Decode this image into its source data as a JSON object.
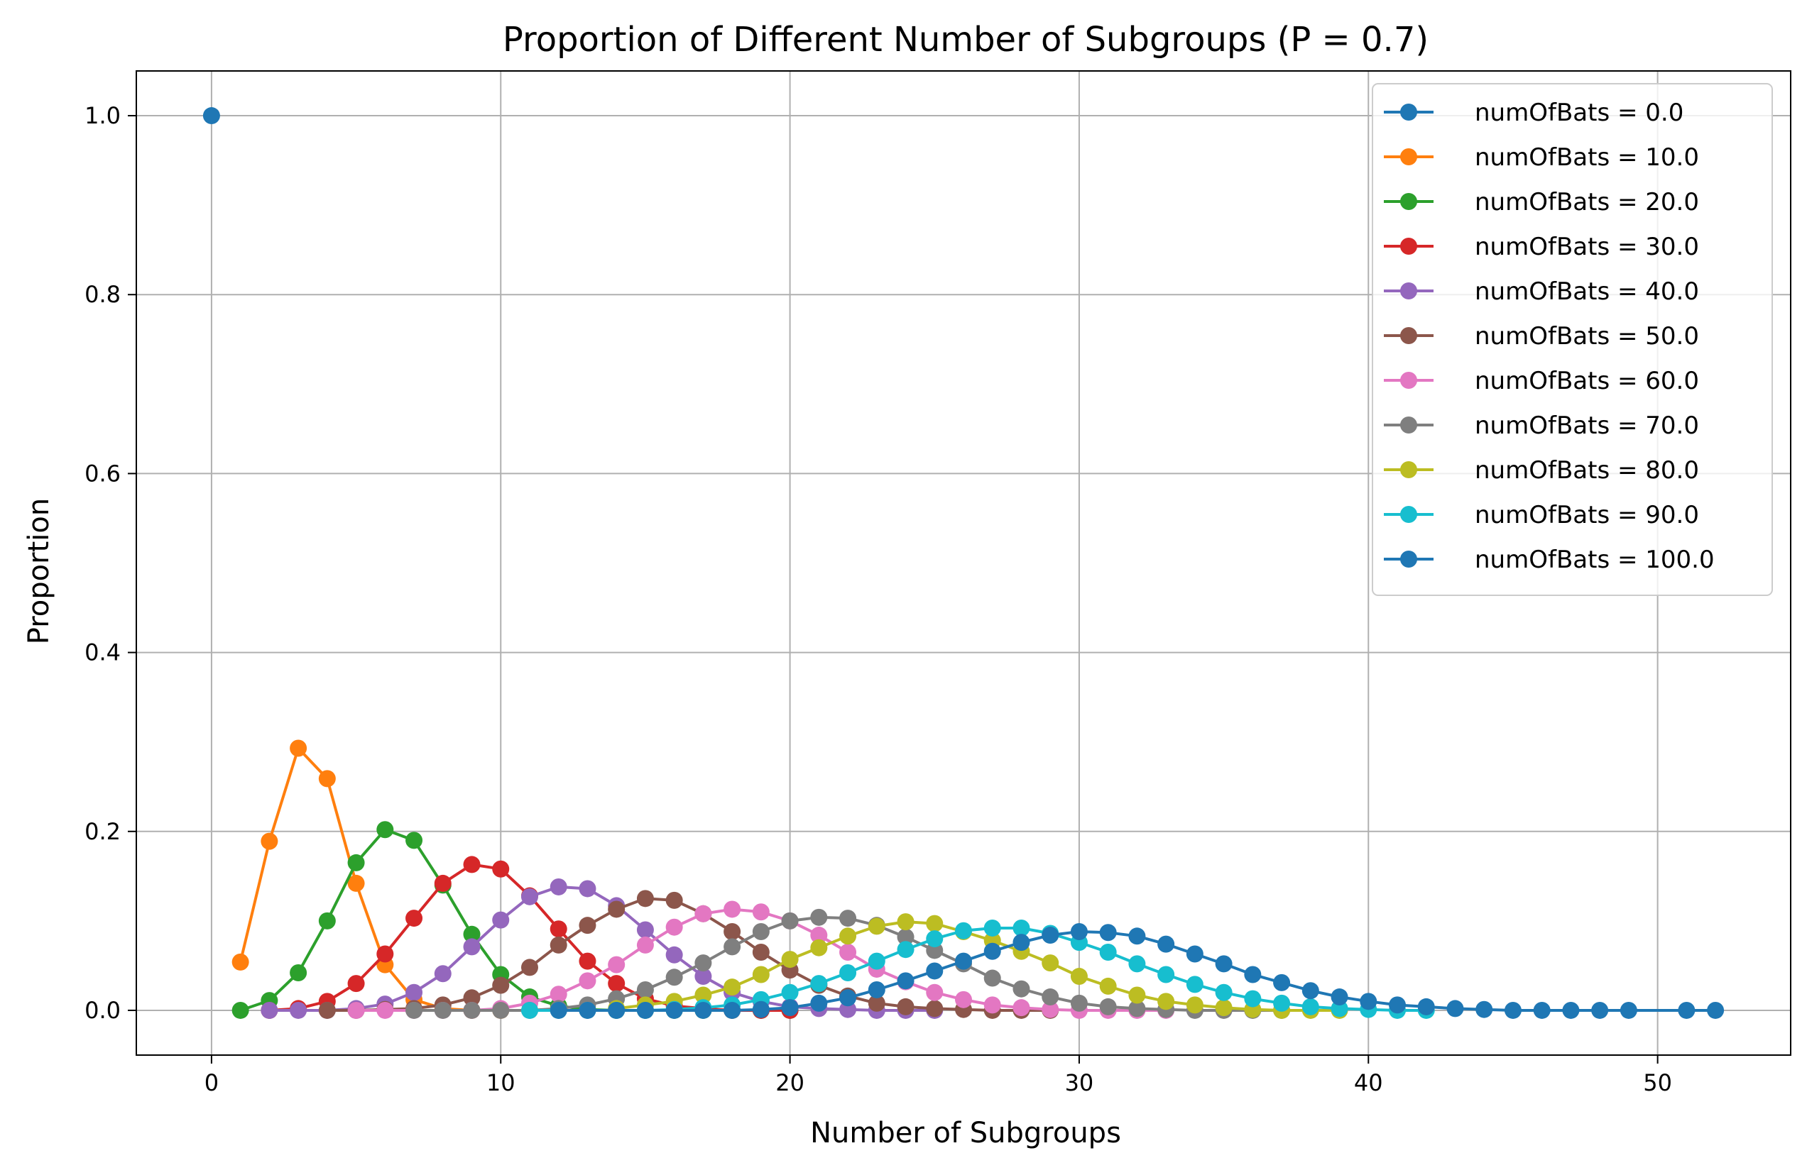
{
  "chart_data": {
    "type": "line",
    "title": "Proportion of Different Number of Subgroups (P = 0.7)",
    "xlabel": "Number of Subgroups",
    "ylabel": "Proportion",
    "xlim": [
      -2.6,
      54.6
    ],
    "ylim": [
      -0.05,
      1.05
    ],
    "xticks": [
      0,
      10,
      20,
      30,
      40,
      50
    ],
    "yticks": [
      0.0,
      0.2,
      0.4,
      0.6,
      0.8,
      1.0
    ],
    "xtick_labels": [
      "0",
      "10",
      "20",
      "30",
      "40",
      "50"
    ],
    "ytick_labels": [
      "0.0",
      "0.2",
      "0.4",
      "0.6",
      "0.8",
      "1.0"
    ],
    "grid": true,
    "legend_position": "top-right",
    "marker": "circle",
    "series": [
      {
        "name": "numOfBats = 0.0",
        "color": "#1f77b4",
        "x": [
          0
        ],
        "y": [
          1.0
        ]
      },
      {
        "name": "numOfBats = 10.0",
        "color": "#ff7f0e",
        "x": [
          1,
          2,
          3,
          4,
          5,
          6,
          7,
          8,
          9,
          10
        ],
        "y": [
          0.054,
          0.189,
          0.293,
          0.259,
          0.142,
          0.051,
          0.012,
          0.002,
          0.0,
          0.0
        ]
      },
      {
        "name": "numOfBats = 20.0",
        "color": "#2ca02c",
        "x": [
          1,
          2,
          3,
          4,
          5,
          6,
          7,
          8,
          9,
          10,
          11,
          12,
          13,
          14,
          15,
          16,
          17,
          18,
          19,
          20
        ],
        "y": [
          0.0,
          0.011,
          0.042,
          0.1,
          0.165,
          0.202,
          0.19,
          0.14,
          0.085,
          0.04,
          0.015,
          0.005,
          0.001,
          0.0,
          0.0,
          0.0,
          0.0,
          0.0,
          0.0,
          0.0
        ]
      },
      {
        "name": "numOfBats = 30.0",
        "color": "#d62728",
        "x": [
          2,
          3,
          4,
          5,
          6,
          7,
          8,
          9,
          10,
          11,
          12,
          13,
          14,
          15,
          16,
          17,
          18,
          19,
          20
        ],
        "y": [
          0.0,
          0.002,
          0.01,
          0.03,
          0.063,
          0.103,
          0.142,
          0.163,
          0.158,
          0.128,
          0.091,
          0.055,
          0.03,
          0.013,
          0.005,
          0.002,
          0.0,
          0.0,
          0.0
        ]
      },
      {
        "name": "numOfBats = 40.0",
        "color": "#9467bd",
        "x": [
          2,
          3,
          4,
          5,
          6,
          7,
          8,
          9,
          10,
          11,
          12,
          13,
          14,
          15,
          16,
          17,
          18,
          19,
          20,
          21,
          22,
          23,
          24,
          25
        ],
        "y": [
          0.0,
          0.0,
          0.0,
          0.002,
          0.007,
          0.02,
          0.041,
          0.071,
          0.101,
          0.127,
          0.138,
          0.136,
          0.117,
          0.09,
          0.062,
          0.038,
          0.02,
          0.01,
          0.004,
          0.002,
          0.001,
          0.0,
          0.0,
          0.0
        ]
      },
      {
        "name": "numOfBats = 50.0",
        "color": "#8c564b",
        "x": [
          4,
          5,
          6,
          7,
          8,
          9,
          10,
          11,
          12,
          13,
          14,
          15,
          16,
          17,
          18,
          19,
          20,
          21,
          22,
          23,
          24,
          25,
          26,
          27,
          28,
          29
        ],
        "y": [
          0.0,
          0.0,
          0.001,
          0.002,
          0.006,
          0.014,
          0.028,
          0.048,
          0.073,
          0.095,
          0.113,
          0.125,
          0.123,
          0.108,
          0.088,
          0.065,
          0.045,
          0.028,
          0.016,
          0.008,
          0.004,
          0.002,
          0.001,
          0.0,
          0.0,
          0.0
        ]
      },
      {
        "name": "numOfBats = 60.0",
        "color": "#e377c2",
        "x": [
          5,
          6,
          7,
          8,
          9,
          10,
          11,
          12,
          13,
          14,
          15,
          16,
          17,
          18,
          19,
          20,
          21,
          22,
          23,
          24,
          25,
          26,
          27,
          28,
          29,
          30,
          31,
          32,
          33
        ],
        "y": [
          0.0,
          0.0,
          0.0,
          0.0,
          0.0,
          0.002,
          0.008,
          0.018,
          0.033,
          0.051,
          0.073,
          0.093,
          0.108,
          0.113,
          0.11,
          0.1,
          0.084,
          0.065,
          0.046,
          0.032,
          0.02,
          0.012,
          0.006,
          0.003,
          0.001,
          0.0,
          0.0,
          0.0,
          0.0
        ]
      },
      {
        "name": "numOfBats = 70.0",
        "color": "#7f7f7f",
        "x": [
          7,
          8,
          9,
          10,
          11,
          12,
          13,
          14,
          15,
          16,
          17,
          18,
          19,
          20,
          21,
          22,
          23,
          24,
          25,
          26,
          27,
          28,
          29,
          30,
          31,
          32,
          33,
          34,
          35,
          36,
          37
        ],
        "y": [
          0.0,
          0.0,
          0.0,
          0.0,
          0.0,
          0.002,
          0.006,
          0.013,
          0.023,
          0.037,
          0.053,
          0.071,
          0.088,
          0.1,
          0.104,
          0.103,
          0.095,
          0.082,
          0.067,
          0.052,
          0.036,
          0.024,
          0.015,
          0.008,
          0.004,
          0.002,
          0.001,
          0.0,
          0.0,
          0.0,
          0.0
        ]
      },
      {
        "name": "numOfBats = 80.0",
        "color": "#bcbd22",
        "x": [
          14,
          15,
          16,
          17,
          18,
          19,
          20,
          21,
          22,
          23,
          24,
          25,
          26,
          27,
          28,
          29,
          30,
          31,
          32,
          33,
          34,
          35,
          36,
          37,
          38,
          39
        ],
        "y": [
          0.002,
          0.006,
          0.01,
          0.017,
          0.026,
          0.04,
          0.057,
          0.07,
          0.083,
          0.094,
          0.099,
          0.097,
          0.088,
          0.078,
          0.066,
          0.053,
          0.038,
          0.027,
          0.017,
          0.01,
          0.006,
          0.003,
          0.001,
          0.0,
          0.0,
          0.0
        ]
      },
      {
        "name": "numOfBats = 90.0",
        "color": "#17becf",
        "x": [
          11,
          12,
          13,
          14,
          15,
          16,
          17,
          18,
          19,
          20,
          21,
          22,
          23,
          24,
          25,
          26,
          27,
          28,
          29,
          30,
          31,
          32,
          33,
          34,
          35,
          36,
          37,
          38,
          39,
          40,
          41,
          42
        ],
        "y": [
          0.0,
          0.0,
          0.0,
          0.0,
          0.0,
          0.001,
          0.003,
          0.006,
          0.012,
          0.02,
          0.03,
          0.042,
          0.055,
          0.068,
          0.08,
          0.089,
          0.092,
          0.092,
          0.086,
          0.076,
          0.065,
          0.052,
          0.04,
          0.029,
          0.02,
          0.013,
          0.008,
          0.004,
          0.002,
          0.001,
          0.0,
          0.0
        ]
      },
      {
        "name": "numOfBats = 100.0",
        "color": "#1f77b4",
        "x": [
          12,
          13,
          14,
          15,
          16,
          17,
          18,
          19,
          20,
          21,
          22,
          23,
          24,
          25,
          26,
          27,
          28,
          29,
          30,
          31,
          32,
          33,
          34,
          35,
          36,
          37,
          38,
          39,
          40,
          41,
          42,
          43,
          44,
          45,
          46,
          47,
          48,
          49,
          51,
          52
        ],
        "y": [
          0.0,
          0.0,
          0.0,
          0.0,
          0.0,
          0.0,
          0.0,
          0.001,
          0.003,
          0.008,
          0.014,
          0.023,
          0.033,
          0.044,
          0.055,
          0.066,
          0.076,
          0.084,
          0.088,
          0.087,
          0.083,
          0.074,
          0.063,
          0.052,
          0.04,
          0.031,
          0.022,
          0.015,
          0.01,
          0.006,
          0.004,
          0.002,
          0.001,
          0.0,
          0.0,
          0.0,
          0.0,
          0.0,
          0.0,
          0.0
        ]
      }
    ]
  }
}
